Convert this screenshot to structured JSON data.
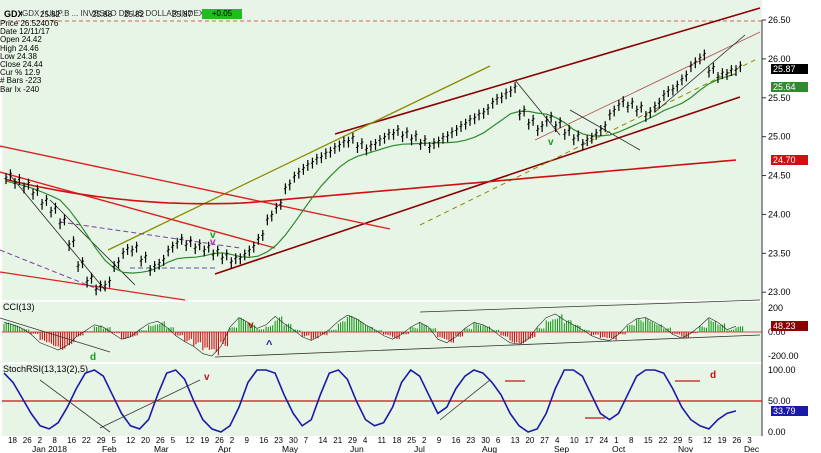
{
  "header": {
    "ticker_text": "GDX / UUP.B ... INVESCO DB US DOLLAR INDEX BULL",
    "v1": "25.82",
    "v2": "25.88",
    "v3": "25.82",
    "v4": "25.87",
    "chg": "+0.05"
  },
  "info": {
    "lines": [
      "Price 26.524076",
      "Date 12/11/17",
      "Open 24.42",
      "High 24.46",
      "Low 24.38",
      "Close 24.44",
      "Cur % 12.9",
      "# Bars -223",
      "Bar Ix -240"
    ]
  },
  "colors": {
    "bg": "#e6f5e6",
    "price_bar": "#000000",
    "ma_short": "#2e8b2e",
    "ma_long": "#d01010",
    "channel": "#8b0000",
    "cci_pos": "#1a9a1a",
    "cci_neg": "#cc1010",
    "stoch_line": "#1a1aaa",
    "stoch_ref": "#cc1010",
    "olive": "#8b8b00"
  },
  "price_tags": [
    {
      "label": "25.87",
      "value": 25.87,
      "bg": "#000000",
      "fg": "#ffffff"
    },
    {
      "label": "25.64",
      "value": 25.64,
      "bg": "#2e8b2e",
      "fg": "#ffffff"
    },
    {
      "label": "24.70",
      "value": 24.7,
      "bg": "#d01010",
      "fg": "#ffffff"
    }
  ],
  "cci": {
    "title": "CCI(13)",
    "tag": "48.23",
    "ticks": [
      "200",
      "0.00",
      "-200.00"
    ]
  },
  "stoch": {
    "title": "StochRSI(13,13(2),5)",
    "tag": "33.79",
    "ticks": [
      "100.00",
      "50.00",
      "0.00"
    ]
  },
  "chart_data": {
    "type": "line",
    "title": "",
    "ylim": [
      22.9,
      26.5
    ],
    "y_ticks": [
      "26.50",
      "26.00",
      "25.50",
      "25.00",
      "24.50",
      "24.00",
      "23.50",
      "23.00"
    ],
    "x_day_labels": [
      "18",
      "26",
      "2",
      "8",
      "16",
      "22",
      "29",
      "5",
      "12",
      "20",
      "26",
      "5",
      "12",
      "19",
      "26",
      "2",
      "9",
      "16",
      "23",
      "30",
      "7",
      "14",
      "21",
      "29",
      "4",
      "11",
      "18",
      "25",
      "2",
      "9",
      "16",
      "23",
      "30",
      "6",
      "13",
      "20",
      "27",
      "4",
      "10",
      "17",
      "24",
      "1",
      "8",
      "15",
      "22",
      "29",
      "5",
      "12",
      "19",
      "26",
      "3"
    ],
    "x_month_labels": [
      "Jan 2018",
      "Feb",
      "Mar",
      "Apr",
      "May",
      "Jun",
      "Jul",
      "Aug",
      "Sep",
      "Oct",
      "Nov",
      "Dec"
    ],
    "series": [
      {
        "values": [
          24.48,
          24.42,
          24.36,
          24.28,
          24.15,
          24.05,
          23.9,
          23.62,
          23.35,
          23.15,
          23.05,
          23.1,
          23.35,
          23.52,
          23.55,
          23.42,
          23.3,
          23.38,
          23.55,
          23.65,
          23.62,
          23.58,
          23.55,
          23.5,
          23.45,
          23.4,
          23.45,
          23.55,
          23.7,
          23.95,
          24.1,
          24.35,
          24.5,
          24.6,
          24.68,
          24.75,
          24.82,
          24.9,
          24.95,
          24.88,
          24.85,
          24.92,
          25.0,
          25.05,
          25.02,
          24.98,
          24.92,
          24.88,
          24.95,
          25.02,
          25.1,
          25.18,
          25.25,
          25.32,
          25.45,
          25.52,
          25.6,
          25.3,
          25.18,
          25.1,
          25.22,
          25.15,
          25.05,
          24.98,
          24.92,
          25.0,
          25.1,
          25.3,
          25.42,
          25.4,
          25.35,
          25.28,
          25.4,
          25.55,
          25.62,
          25.75,
          25.92,
          26.02,
          25.85,
          25.78,
          25.82,
          25.87
        ]
      }
    ],
    "cci_values": [
      80,
      60,
      30,
      -20,
      -90,
      -120,
      -150,
      -110,
      -40,
      10,
      60,
      40,
      -10,
      -60,
      -40,
      20,
      70,
      90,
      40,
      -30,
      -80,
      -120,
      -180,
      -200,
      -120,
      40,
      120,
      80,
      30,
      60,
      130,
      70,
      20,
      -40,
      -70,
      -30,
      20,
      90,
      140,
      110,
      60,
      20,
      -30,
      -60,
      -20,
      40,
      80,
      40,
      -60,
      -90,
      -40,
      30,
      80,
      60,
      20,
      -40,
      -90,
      -100,
      -60,
      40,
      120,
      150,
      100,
      60,
      20,
      -30,
      -60,
      -70,
      -20,
      60,
      110,
      120,
      80,
      40,
      -20,
      -50,
      -10,
      50,
      120,
      80,
      20,
      48
    ],
    "stoch_values": [
      95,
      80,
      55,
      30,
      10,
      5,
      15,
      40,
      70,
      95,
      100,
      90,
      60,
      30,
      10,
      5,
      20,
      60,
      95,
      100,
      85,
      50,
      20,
      5,
      0,
      10,
      40,
      80,
      100,
      100,
      95,
      60,
      30,
      10,
      20,
      60,
      95,
      100,
      85,
      50,
      20,
      10,
      15,
      40,
      80,
      100,
      90,
      60,
      30,
      40,
      70,
      90,
      100,
      95,
      80,
      60,
      30,
      10,
      0,
      5,
      30,
      70,
      100,
      100,
      90,
      60,
      30,
      20,
      30,
      60,
      90,
      100,
      100,
      95,
      70,
      40,
      20,
      10,
      5,
      20,
      30,
      34
    ]
  }
}
